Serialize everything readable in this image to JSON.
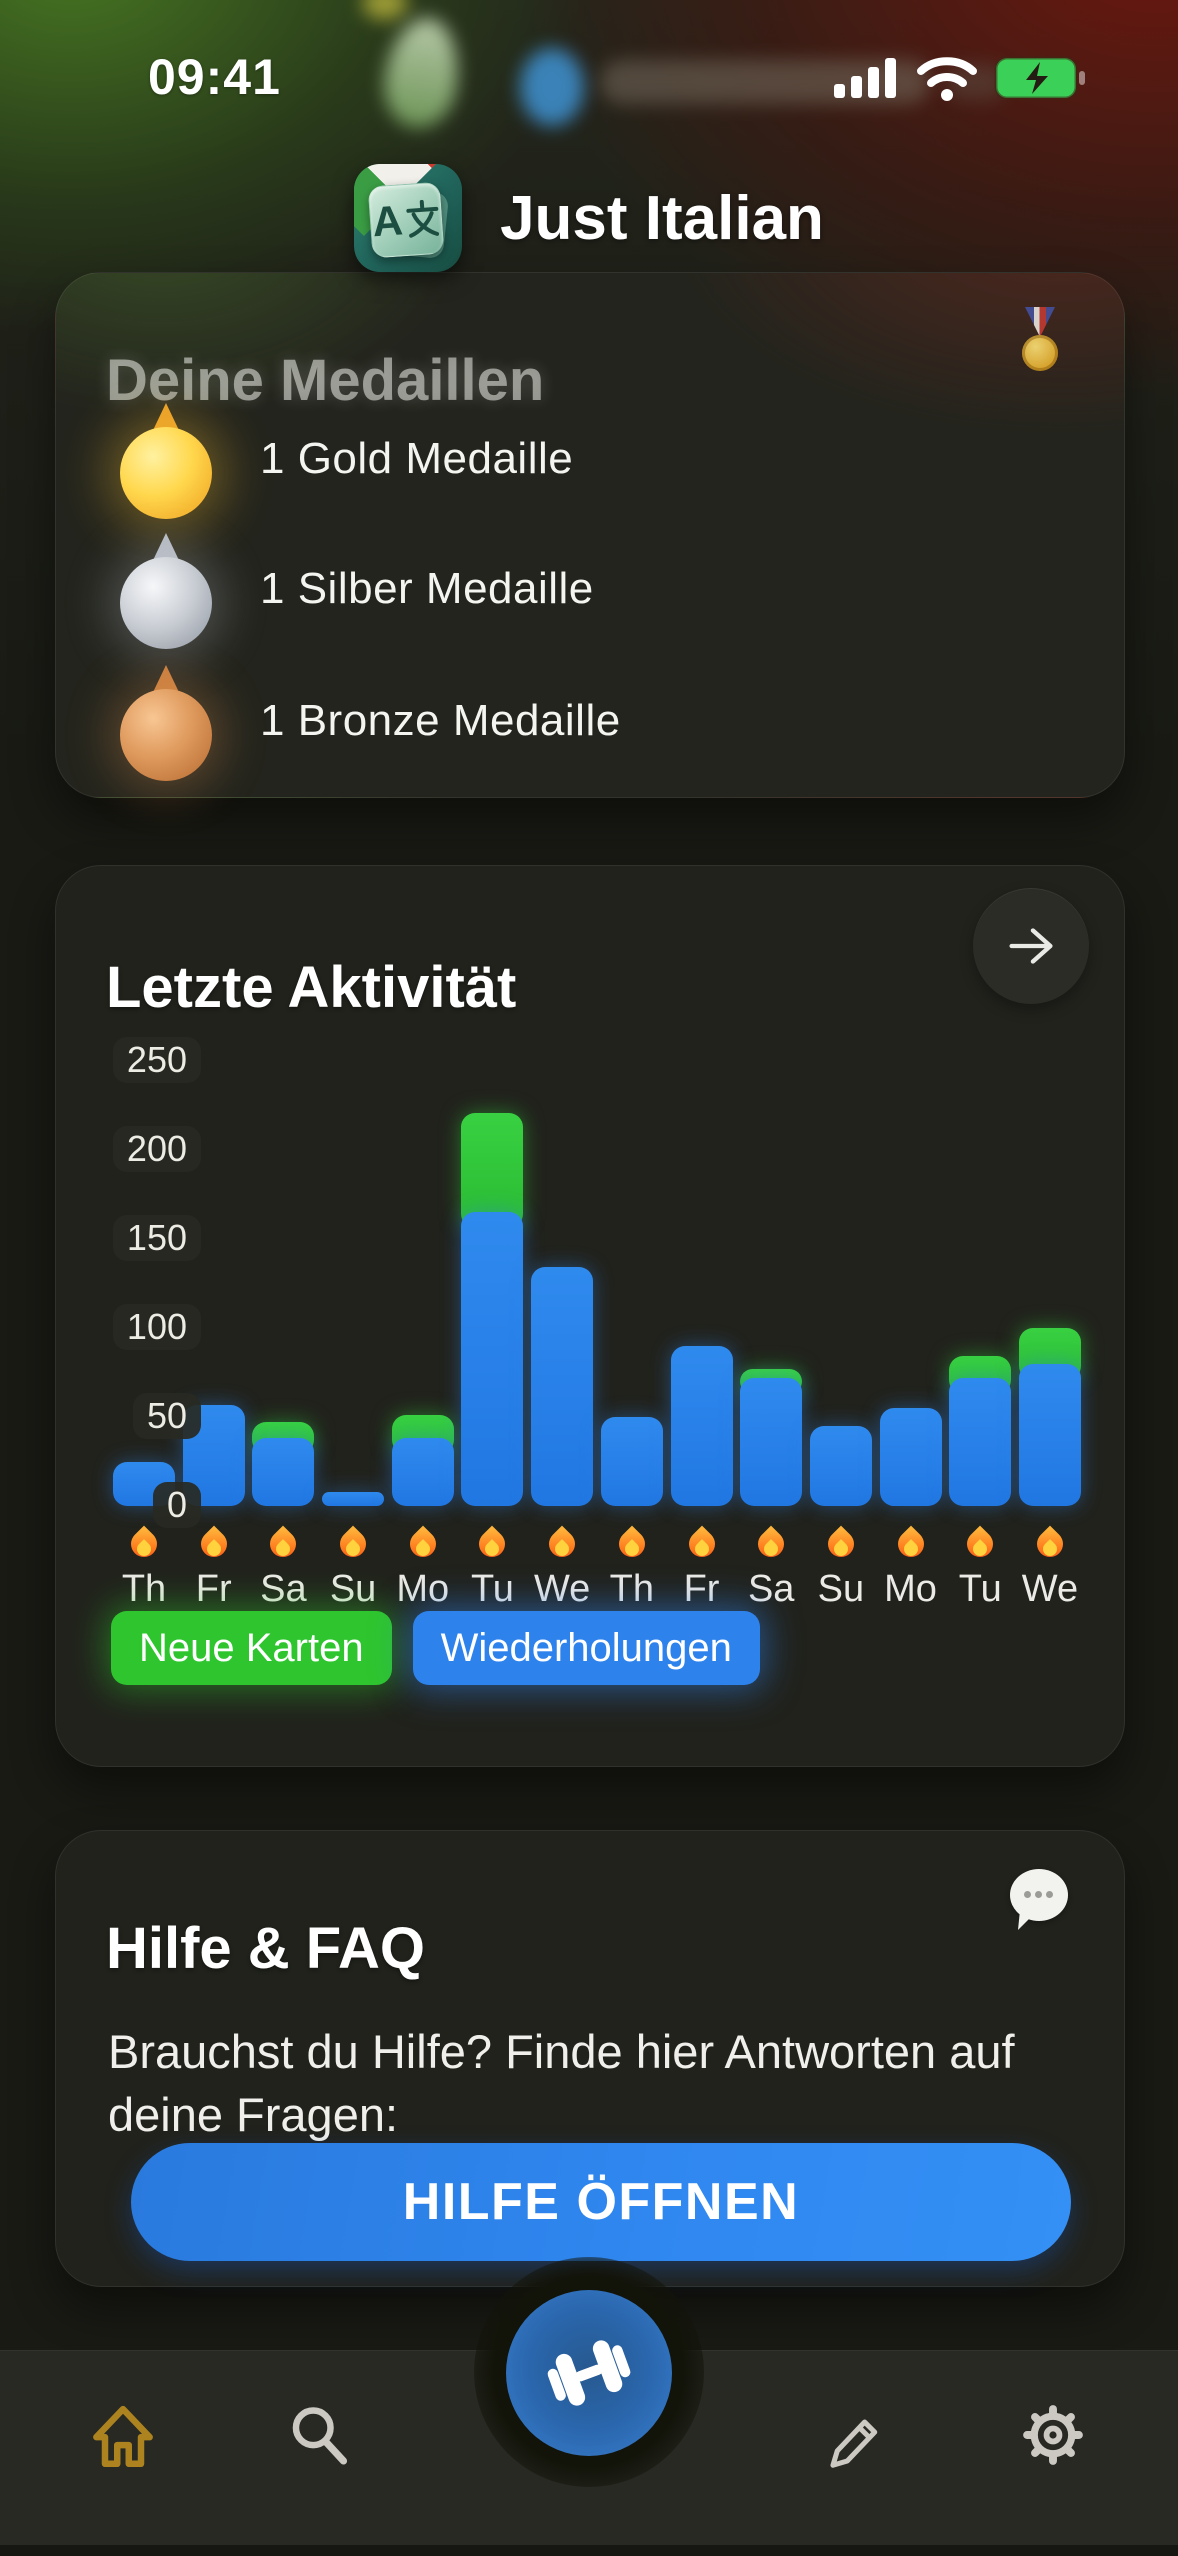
{
  "colors": {
    "bar_blue": "#2581ea",
    "bar_green": "#2ec637",
    "accent_blue": "#2e82ec",
    "legend_green": "#2ec52f",
    "active_tab_gold": "#ad831f",
    "battery_green": "#3bd158",
    "card_background": "#21221c"
  },
  "status_bar": {
    "time": "09:41",
    "icons": [
      "cellular-signal-icon",
      "wifi-icon",
      "battery-charging-icon"
    ]
  },
  "header": {
    "app_title": "Just Italian",
    "app_icon_letter": "A",
    "app_icon_cjk": "文"
  },
  "medals_card": {
    "title": "Deine Medaillen",
    "corner_icon": "sports-medal-emoji",
    "items": [
      {
        "type": "gold",
        "label": "1 Gold Medaille"
      },
      {
        "type": "silver",
        "label": "1 Silber Medaille"
      },
      {
        "type": "bronze",
        "label": "1 Bronze Medaille"
      }
    ]
  },
  "activity_card": {
    "title": "Letzte Aktivität",
    "arrow_icon": "arrow-right-icon",
    "legend": [
      {
        "label": "Neue Karten",
        "color": "#2ec52f"
      },
      {
        "label": "Wiederholungen",
        "color": "#2e82ec"
      }
    ]
  },
  "chart_data": {
    "type": "bar",
    "stacked": true,
    "title": "Letzte Aktivität",
    "categories": [
      "Th",
      "Fr",
      "Sa",
      "Su",
      "Mo",
      "Tu",
      "We",
      "Th",
      "Fr",
      "Sa",
      "Su",
      "Mo",
      "Tu",
      "We"
    ],
    "series": [
      {
        "name": "Wiederholungen",
        "color": "#2581ea",
        "values": [
          25,
          57,
          38,
          8,
          38,
          165,
          134,
          50,
          90,
          72,
          45,
          55,
          72,
          80
        ]
      },
      {
        "name": "Neue Karten",
        "color": "#2ec637",
        "values": [
          0,
          0,
          9,
          0,
          13,
          56,
          0,
          0,
          0,
          5,
          0,
          0,
          12,
          20
        ]
      }
    ],
    "ylim": [
      0,
      250
    ],
    "yticks": [
      0,
      50,
      100,
      150,
      200,
      250
    ],
    "xlabel": "",
    "ylabel": "",
    "grid": false,
    "legend_position": "bottom",
    "x_marker": "flame-emoji"
  },
  "help_card": {
    "title": "Hilfe & FAQ",
    "corner_icon": "speech-bubble-icon",
    "body": "Brauchst du Hilfe? Finde hier Antworten auf deine Fragen:",
    "button_label": "HILFE ÖFFNEN"
  },
  "tab_bar": {
    "items": [
      {
        "icon": "home-icon",
        "active": true
      },
      {
        "icon": "search-icon",
        "active": false
      },
      {
        "icon": "dumbbell-icon",
        "active": false,
        "center": true
      },
      {
        "icon": "pencil-icon",
        "active": false
      },
      {
        "icon": "gear-icon",
        "active": false
      }
    ]
  }
}
